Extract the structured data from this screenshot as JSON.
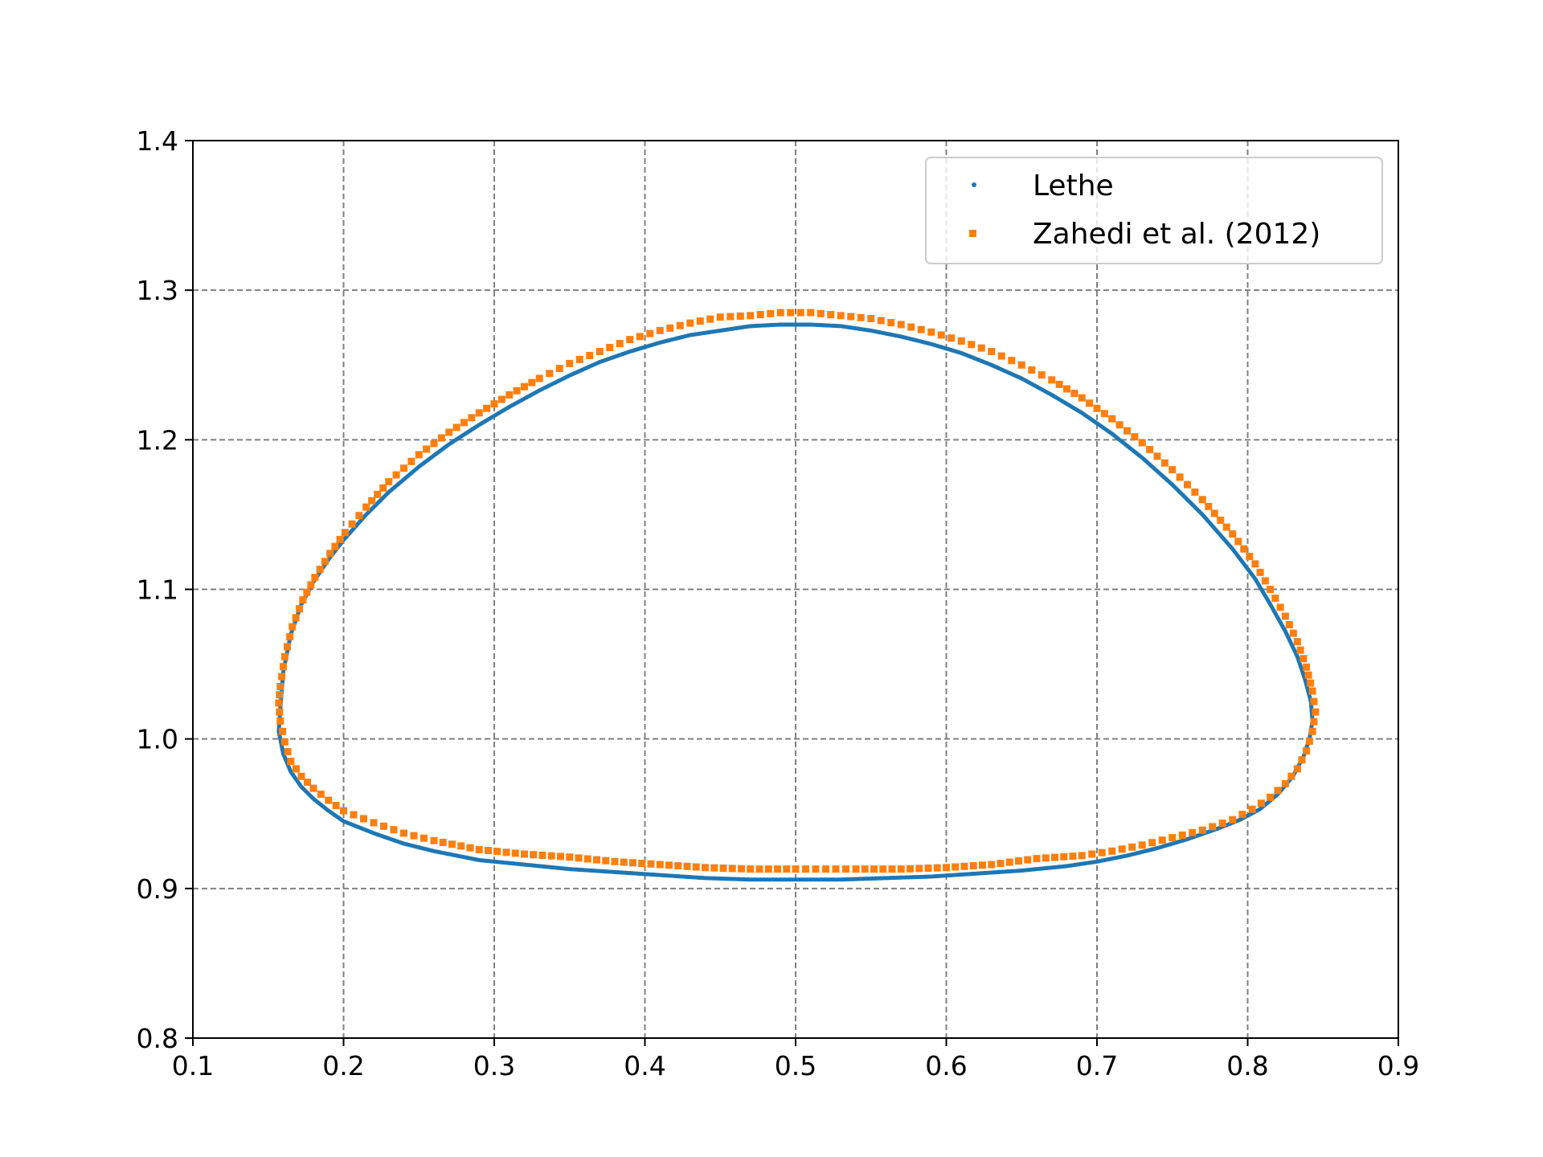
{
  "chart_data": {
    "type": "scatter",
    "title": "",
    "xlabel": "",
    "ylabel": "",
    "xlim": [
      0.1,
      0.9
    ],
    "ylim": [
      0.8,
      1.4
    ],
    "xticks": [
      "0.1",
      "0.2",
      "0.3",
      "0.4",
      "0.5",
      "0.6",
      "0.7",
      "0.8",
      "0.9"
    ],
    "yticks": [
      "0.8",
      "0.9",
      "1.0",
      "1.1",
      "1.2",
      "1.3",
      "1.4"
    ],
    "grid": true,
    "legend_position": "top-right",
    "series": [
      {
        "name": "Lethe",
        "color": "#1f77b4",
        "marker": "dot",
        "points": [
          [
            0.158,
            1.02
          ],
          [
            0.16,
            1.045
          ],
          [
            0.165,
            1.07
          ],
          [
            0.172,
            1.09
          ],
          [
            0.18,
            1.105
          ],
          [
            0.19,
            1.12
          ],
          [
            0.2,
            1.133
          ],
          [
            0.215,
            1.15
          ],
          [
            0.23,
            1.165
          ],
          [
            0.25,
            1.182
          ],
          [
            0.27,
            1.197
          ],
          [
            0.29,
            1.21
          ],
          [
            0.31,
            1.222
          ],
          [
            0.33,
            1.233
          ],
          [
            0.35,
            1.243
          ],
          [
            0.37,
            1.252
          ],
          [
            0.39,
            1.259
          ],
          [
            0.41,
            1.265
          ],
          [
            0.43,
            1.27
          ],
          [
            0.45,
            1.273
          ],
          [
            0.47,
            1.276
          ],
          [
            0.49,
            1.277
          ],
          [
            0.51,
            1.277
          ],
          [
            0.53,
            1.276
          ],
          [
            0.55,
            1.273
          ],
          [
            0.57,
            1.269
          ],
          [
            0.59,
            1.264
          ],
          [
            0.61,
            1.258
          ],
          [
            0.63,
            1.25
          ],
          [
            0.65,
            1.241
          ],
          [
            0.67,
            1.23
          ],
          [
            0.69,
            1.218
          ],
          [
            0.71,
            1.204
          ],
          [
            0.73,
            1.188
          ],
          [
            0.75,
            1.17
          ],
          [
            0.77,
            1.15
          ],
          [
            0.79,
            1.127
          ],
          [
            0.805,
            1.107
          ],
          [
            0.815,
            1.09
          ],
          [
            0.825,
            1.072
          ],
          [
            0.833,
            1.055
          ],
          [
            0.838,
            1.04
          ],
          [
            0.842,
            1.025
          ],
          [
            0.843,
            1.012
          ],
          [
            0.841,
            1.0
          ],
          [
            0.837,
            0.988
          ],
          [
            0.83,
            0.975
          ],
          [
            0.82,
            0.963
          ],
          [
            0.808,
            0.953
          ],
          [
            0.795,
            0.946
          ],
          [
            0.78,
            0.94
          ],
          [
            0.76,
            0.933
          ],
          [
            0.74,
            0.927
          ],
          [
            0.72,
            0.922
          ],
          [
            0.7,
            0.918
          ],
          [
            0.68,
            0.915
          ],
          [
            0.65,
            0.912
          ],
          [
            0.62,
            0.91
          ],
          [
            0.59,
            0.908
          ],
          [
            0.56,
            0.907
          ],
          [
            0.53,
            0.906
          ],
          [
            0.5,
            0.906
          ],
          [
            0.47,
            0.906
          ],
          [
            0.44,
            0.907
          ],
          [
            0.41,
            0.909
          ],
          [
            0.38,
            0.911
          ],
          [
            0.35,
            0.913
          ],
          [
            0.32,
            0.916
          ],
          [
            0.29,
            0.919
          ],
          [
            0.26,
            0.925
          ],
          [
            0.24,
            0.93
          ],
          [
            0.22,
            0.937
          ],
          [
            0.2,
            0.945
          ],
          [
            0.19,
            0.952
          ],
          [
            0.18,
            0.96
          ],
          [
            0.172,
            0.968
          ],
          [
            0.165,
            0.978
          ],
          [
            0.16,
            0.99
          ],
          [
            0.157,
            1.005
          ]
        ]
      },
      {
        "name": "Zahedi et al. (2012)",
        "color": "#ff7f0e",
        "marker": "square",
        "points": [
          [
            0.158,
            1.035
          ],
          [
            0.161,
            1.055
          ],
          [
            0.166,
            1.075
          ],
          [
            0.173,
            1.093
          ],
          [
            0.181,
            1.108
          ],
          [
            0.191,
            1.124
          ],
          [
            0.201,
            1.138
          ],
          [
            0.215,
            1.155
          ],
          [
            0.23,
            1.172
          ],
          [
            0.25,
            1.19
          ],
          [
            0.27,
            1.205
          ],
          [
            0.29,
            1.218
          ],
          [
            0.31,
            1.23
          ],
          [
            0.33,
            1.241
          ],
          [
            0.35,
            1.251
          ],
          [
            0.37,
            1.259
          ],
          [
            0.39,
            1.267
          ],
          [
            0.41,
            1.273
          ],
          [
            0.43,
            1.278
          ],
          [
            0.45,
            1.282
          ],
          [
            0.47,
            1.283
          ],
          [
            0.49,
            1.285
          ],
          [
            0.51,
            1.285
          ],
          [
            0.53,
            1.283
          ],
          [
            0.55,
            1.281
          ],
          [
            0.57,
            1.277
          ],
          [
            0.59,
            1.272
          ],
          [
            0.61,
            1.266
          ],
          [
            0.63,
            1.259
          ],
          [
            0.65,
            1.25
          ],
          [
            0.67,
            1.24
          ],
          [
            0.69,
            1.228
          ],
          [
            0.71,
            1.214
          ],
          [
            0.73,
            1.198
          ],
          [
            0.75,
            1.18
          ],
          [
            0.77,
            1.16
          ],
          [
            0.79,
            1.137
          ],
          [
            0.805,
            1.117
          ],
          [
            0.815,
            1.1
          ],
          [
            0.825,
            1.082
          ],
          [
            0.833,
            1.065
          ],
          [
            0.839,
            1.048
          ],
          [
            0.843,
            1.032
          ],
          [
            0.845,
            1.018
          ],
          [
            0.843,
            1.005
          ],
          [
            0.839,
            0.992
          ],
          [
            0.833,
            0.98
          ],
          [
            0.825,
            0.97
          ],
          [
            0.815,
            0.961
          ],
          [
            0.803,
            0.953
          ],
          [
            0.79,
            0.946
          ],
          [
            0.77,
            0.939
          ],
          [
            0.75,
            0.934
          ],
          [
            0.73,
            0.929
          ],
          [
            0.71,
            0.925
          ],
          [
            0.69,
            0.922
          ],
          [
            0.66,
            0.92
          ],
          [
            0.63,
            0.916
          ],
          [
            0.6,
            0.914
          ],
          [
            0.57,
            0.913
          ],
          [
            0.54,
            0.913
          ],
          [
            0.5,
            0.913
          ],
          [
            0.47,
            0.913
          ],
          [
            0.44,
            0.914
          ],
          [
            0.41,
            0.916
          ],
          [
            0.38,
            0.918
          ],
          [
            0.35,
            0.921
          ],
          [
            0.32,
            0.923
          ],
          [
            0.29,
            0.926
          ],
          [
            0.26,
            0.932
          ],
          [
            0.24,
            0.937
          ],
          [
            0.22,
            0.944
          ],
          [
            0.2,
            0.952
          ],
          [
            0.19,
            0.959
          ],
          [
            0.18,
            0.967
          ],
          [
            0.172,
            0.975
          ],
          [
            0.165,
            0.985
          ],
          [
            0.161,
            0.998
          ],
          [
            0.158,
            1.012
          ],
          [
            0.157,
            1.024
          ]
        ]
      }
    ]
  }
}
